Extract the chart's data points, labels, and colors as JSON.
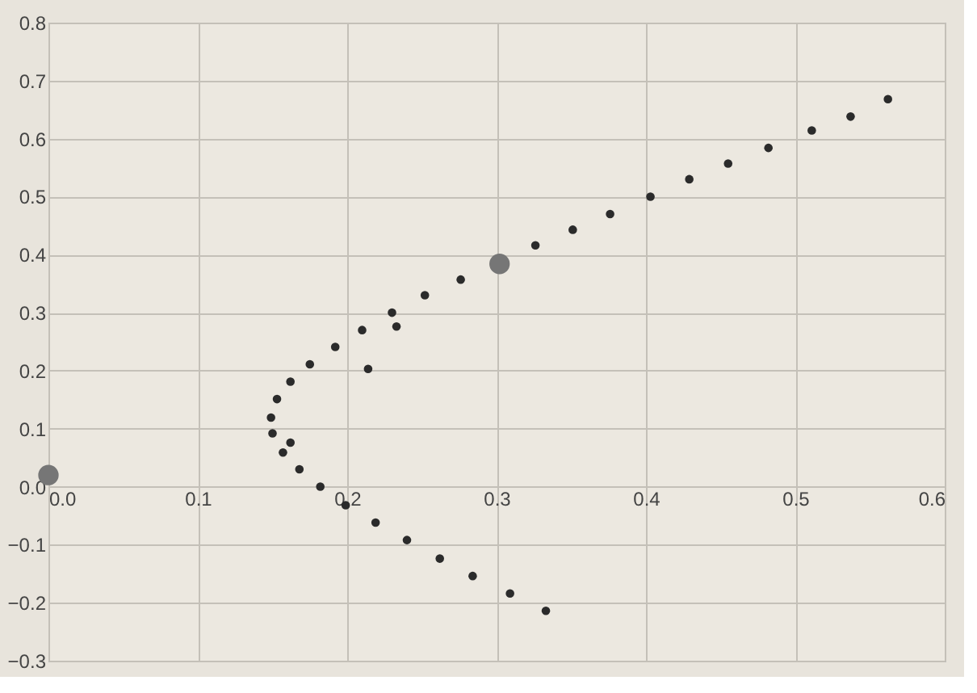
{
  "chart_data": {
    "type": "scatter",
    "xlim": [
      0,
      0.6
    ],
    "ylim": [
      -0.3,
      0.8
    ],
    "xticks": [
      {
        "value": 0,
        "label": "0.0"
      },
      0.1,
      0.2,
      0.3,
      0.4,
      0.5,
      0.6
    ],
    "yticks": [
      -0.3,
      -0.2,
      -0.1,
      {
        "value": 0,
        "label": "0.0"
      },
      0.1,
      0.2,
      0.3,
      0.4,
      0.5,
      0.6,
      0.7,
      0.8
    ],
    "grid": true,
    "marker": "circle",
    "series": [
      {
        "color": "#2b2b2b",
        "x": [
          0.562,
          0.537,
          0.511,
          0.482,
          0.455,
          0.429,
          0.403,
          0.376,
          0.351,
          0.326,
          0.276,
          0.252,
          0.23,
          0.233,
          0.21,
          0.214,
          0.192,
          0.175,
          0.162,
          0.153,
          0.149,
          0.15,
          0.162,
          0.157,
          0.168,
          0.182,
          0.199,
          0.219,
          0.24,
          0.262,
          0.284,
          0.309,
          0.333
        ],
        "values": [
          0.668,
          0.638,
          0.614,
          0.584,
          0.557,
          0.53,
          0.5,
          0.47,
          0.443,
          0.416,
          0.357,
          0.33,
          0.3,
          0.276,
          0.27,
          0.203,
          0.241,
          0.211,
          0.181,
          0.151,
          0.119,
          0.092,
          0.076,
          0.059,
          0.03,
          0.0,
          -0.032,
          -0.062,
          -0.092,
          -0.124,
          -0.154,
          -0.184,
          -0.214
        ]
      },
      {
        "color": "#767676",
        "x": [
          0.0,
          0.302
        ],
        "values": [
          0.02,
          0.384
        ]
      }
    ]
  }
}
